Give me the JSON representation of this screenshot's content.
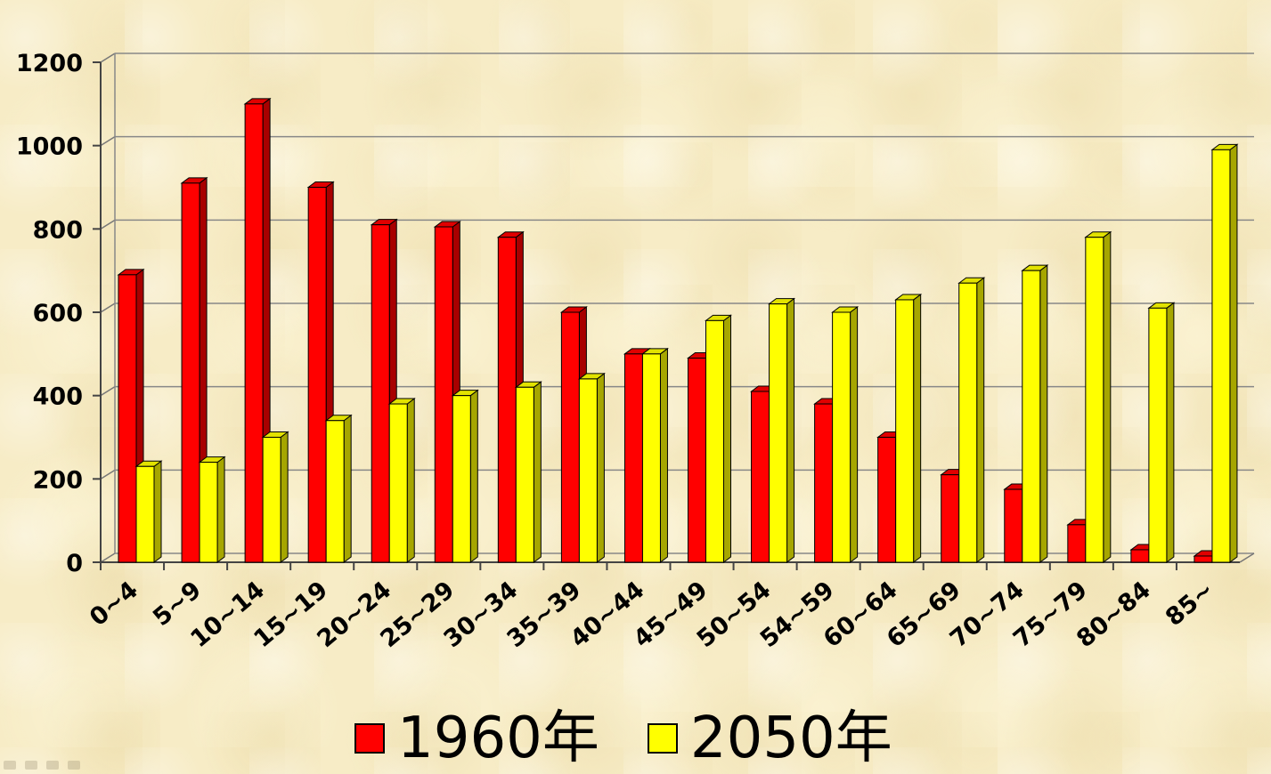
{
  "chart_data": {
    "type": "bar",
    "categories": [
      "0~4",
      "5~9",
      "10~14",
      "15~19",
      "20~24",
      "25~29",
      "30~34",
      "35~39",
      "40~44",
      "45~49",
      "50~54",
      "54~59",
      "60~64",
      "65~69",
      "70~74",
      "75~79",
      "80~84",
      "85~"
    ],
    "series": [
      {
        "name": "1960年",
        "color": "#ff0000",
        "values": [
          690,
          910,
          1100,
          900,
          810,
          805,
          780,
          600,
          500,
          490,
          410,
          380,
          300,
          210,
          175,
          90,
          30,
          15
        ]
      },
      {
        "name": "2050年",
        "color": "#ffff00",
        "values": [
          230,
          240,
          300,
          340,
          380,
          400,
          420,
          440,
          500,
          580,
          620,
          600,
          630,
          670,
          700,
          780,
          610,
          990
        ]
      }
    ],
    "yticks": [
      "0",
      "200",
      "400",
      "600",
      "800",
      "1000",
      "1200"
    ],
    "ylim": [
      0,
      1200
    ],
    "grid": true,
    "legend_position": "bottom"
  }
}
